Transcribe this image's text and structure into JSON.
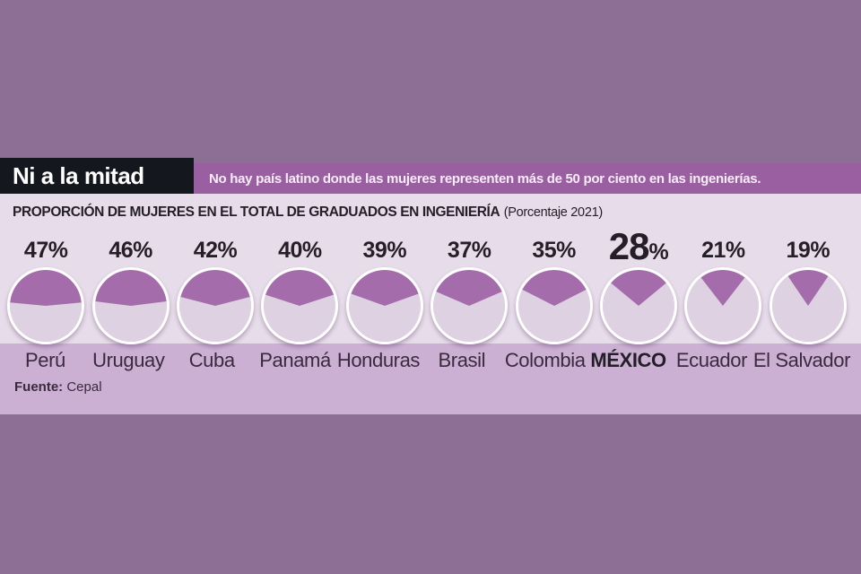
{
  "kicker": "Ni a la mitad",
  "headline": "No hay país latino donde las mujeres representen más de 50 por ciento en las ingenierías.",
  "panel": {
    "title": "PROPORCIÓN DE MUJERES EN EL TOTAL DE GRADUADOS EN INGENIERÍA",
    "subtitle": "(Porcentaje 2021)"
  },
  "source": {
    "label": "Fuente:",
    "value": "Cepal"
  },
  "chart_data": {
    "type": "pie",
    "title": "PROPORCIÓN DE MUJERES EN EL TOTAL DE GRADUADOS EN INGENIERÍA",
    "subtitle": "(Porcentaje 2021)",
    "unit": "%",
    "categories": [
      "Perú",
      "Uruguay",
      "Cuba",
      "Panamá",
      "Honduras",
      "Brasil",
      "Colombia",
      "MÉXICO",
      "Ecuador",
      "El Salvador"
    ],
    "values": [
      47,
      46,
      42,
      40,
      39,
      37,
      35,
      28,
      21,
      19
    ],
    "highlight_category": "MÉXICO",
    "slice_anchor": "top-centered",
    "legend": "none",
    "value_range": [
      0,
      100
    ]
  },
  "colors": {
    "background": "#8d6e95",
    "kicker_bg": "#14171d",
    "kicker_text": "#ffffff",
    "headline_bg": "#9a5fa0",
    "headline_text": "#f7edf9",
    "panel_bg": "#e7dcea",
    "strip_bg": "#cbb0d4",
    "pie_slice": "#a56cab",
    "pie_rest": "#ddd1e2",
    "pie_border": "#ffffff",
    "ink": "#241e28",
    "ink_soft": "#392a3e"
  }
}
